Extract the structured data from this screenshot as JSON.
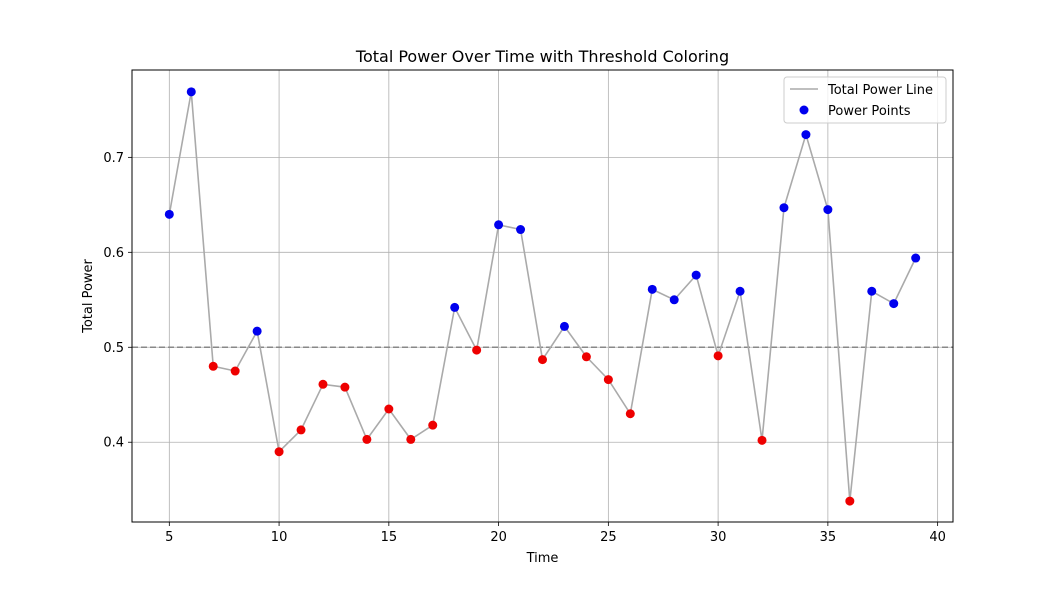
{
  "chart_data": {
    "type": "line",
    "title": "Total Power Over Time with Threshold Coloring",
    "xlabel": "Time",
    "ylabel": "Total Power",
    "xlim": [
      3.3,
      40.7
    ],
    "ylim": [
      0.316,
      0.792
    ],
    "xticks": [
      5,
      10,
      15,
      20,
      25,
      30,
      35,
      40
    ],
    "yticks": [
      0.4,
      0.5,
      0.6,
      0.7
    ],
    "ytick_labels": [
      "0.4",
      "0.5",
      "0.6",
      "0.7"
    ],
    "grid": true,
    "legend_position": "top-right",
    "threshold": 0.5,
    "colors": {
      "line": "#aaaaaa",
      "above": "#0000ee",
      "below": "#ee0000",
      "threshold": "#888888"
    },
    "x": [
      5,
      6,
      7,
      8,
      9,
      10,
      11,
      12,
      13,
      14,
      15,
      16,
      17,
      18,
      19,
      20,
      21,
      22,
      23,
      24,
      25,
      26,
      27,
      28,
      29,
      30,
      31,
      32,
      33,
      34,
      35,
      36,
      37,
      38,
      39
    ],
    "y": [
      0.64,
      0.769,
      0.48,
      0.475,
      0.517,
      0.39,
      0.413,
      0.461,
      0.458,
      0.403,
      0.435,
      0.403,
      0.418,
      0.542,
      0.497,
      0.629,
      0.624,
      0.487,
      0.522,
      0.49,
      0.466,
      0.43,
      0.561,
      0.55,
      0.576,
      0.491,
      0.559,
      0.402,
      0.647,
      0.724,
      0.645,
      0.338,
      0.559,
      0.546,
      0.594
    ],
    "series": [
      {
        "name": "Total Power Line",
        "kind": "line"
      },
      {
        "name": "Power Points",
        "kind": "scatter"
      }
    ]
  }
}
